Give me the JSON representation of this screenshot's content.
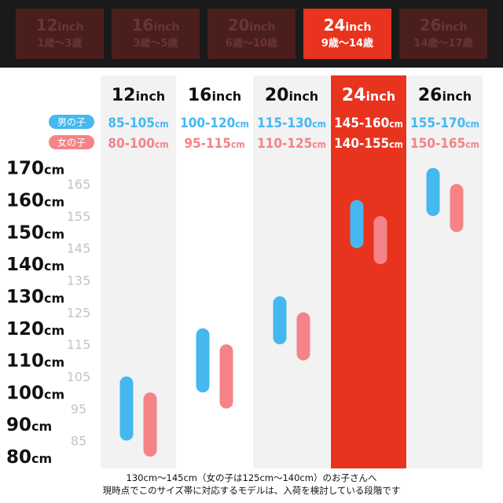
{
  "tabs": [
    {
      "size": "12",
      "unit": "inch",
      "age": "1歳〜3歳",
      "active": false
    },
    {
      "size": "16",
      "unit": "inch",
      "age": "3歳〜5歳",
      "active": false
    },
    {
      "size": "20",
      "unit": "inch",
      "age": "6歳〜10歳",
      "active": false
    },
    {
      "size": "24",
      "unit": "inch",
      "age": "9歳〜14歳",
      "active": true
    },
    {
      "size": "26",
      "unit": "inch",
      "age": "14歳〜17歳",
      "active": false
    }
  ],
  "colors": {
    "boy": "#45b8ef",
    "girl": "#f58387",
    "highlight": "#e8331e",
    "column_bg": "#f2f2f2",
    "grid_label": "#c4c4c4"
  },
  "chart_data": {
    "type": "range-bar",
    "legend": [
      {
        "label": "男の子",
        "color": "#45b8ef"
      },
      {
        "label": "女の子",
        "color": "#f58387"
      }
    ],
    "categories": [
      "12inch",
      "16inch",
      "20inch",
      "24inch",
      "26inch"
    ],
    "highlight_category": "24inch",
    "series": [
      {
        "name": "男の子",
        "ranges": [
          [
            85,
            105
          ],
          [
            100,
            120
          ],
          [
            115,
            130
          ],
          [
            145,
            160
          ],
          [
            155,
            170
          ]
        ],
        "labels": [
          "85-105cm",
          "100-120cm",
          "115-130cm",
          "145-160cm",
          "155-170cm"
        ]
      },
      {
        "name": "女の子",
        "ranges": [
          [
            80,
            100
          ],
          [
            95,
            115
          ],
          [
            110,
            125
          ],
          [
            140,
            155
          ],
          [
            150,
            165
          ]
        ],
        "labels": [
          "80-100cm",
          "95-115cm",
          "110-125cm",
          "140-155cm",
          "150-165cm"
        ]
      }
    ],
    "y_ticks_major": [
      "170cm",
      "160cm",
      "150cm",
      "140cm",
      "130cm",
      "120cm",
      "110cm",
      "100cm",
      "90cm",
      "80cm"
    ],
    "y_ticks_minor": [
      "165",
      "155",
      "145",
      "135",
      "125",
      "115",
      "105",
      "95",
      "85"
    ],
    "ylim": [
      80,
      170
    ]
  },
  "footnote": [
    "130cm〜145cm（女の子は125cm〜140cm）のお子さんへ",
    "現時点でこのサイズ帯に対応するモデルは、入荷を検討している段階です"
  ]
}
